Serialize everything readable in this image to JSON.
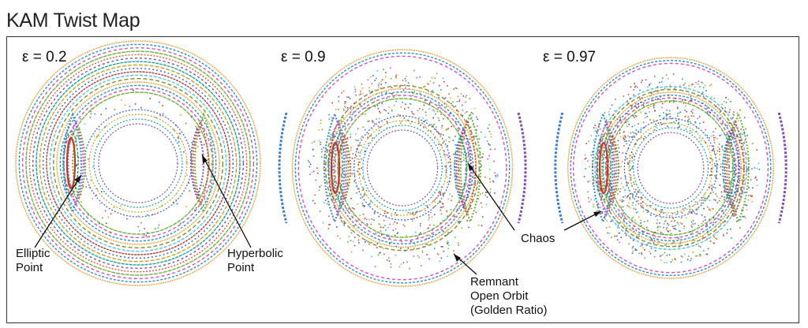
{
  "title": "KAM Twist Map",
  "panels": [
    {
      "epsilon_label": "ε = 0.2"
    },
    {
      "epsilon_label": "ε = 0.9"
    },
    {
      "epsilon_label": "ε = 0.97"
    }
  ],
  "annotations": {
    "elliptic_line1": "Elliptic",
    "elliptic_line2": "Point",
    "hyperbolic_line1": "Hyperbolic",
    "hyperbolic_line2": "Point",
    "chaos": "Chaos",
    "remnant_line1": "Remnant",
    "remnant_line2": "Open Orbit",
    "remnant_line3": "(Golden Ratio)"
  },
  "orbit_colors": [
    "#e8a33d",
    "#2b8fcf",
    "#d64fc3",
    "#6bb33a",
    "#e05a3a",
    "#7d4fb3",
    "#1aa39a",
    "#c9a227",
    "#3a5fcf",
    "#b33a3a",
    "#4fc3e8",
    "#8a8a2a"
  ]
}
